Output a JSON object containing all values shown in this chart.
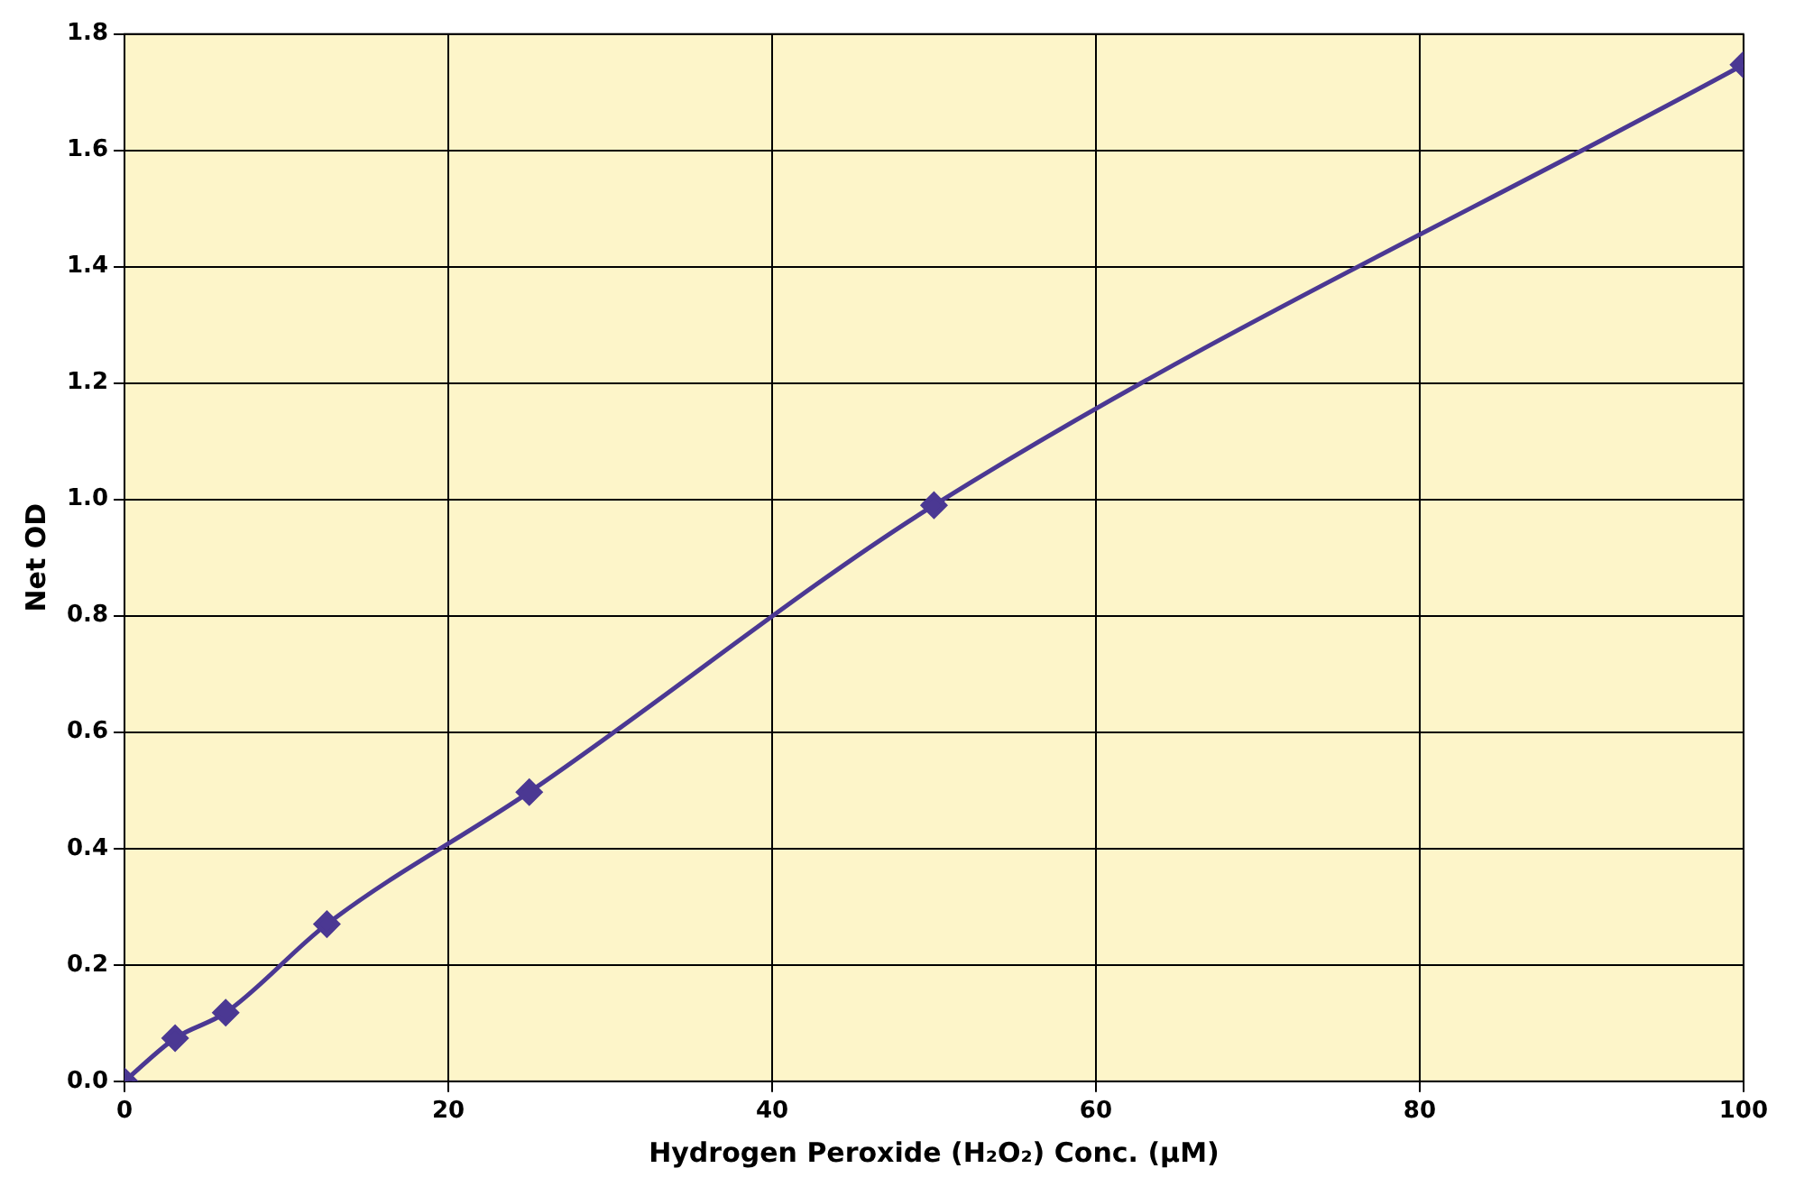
{
  "chart_data": {
    "type": "line",
    "xlabel": "Hydrogen Peroxide (H₂O₂) Conc. (µM)",
    "ylabel": "Net OD",
    "x": [
      0,
      3.125,
      6.25,
      12.5,
      25,
      50,
      100
    ],
    "series": [
      {
        "color": "#4b3893",
        "values": [
          0,
          0.074,
          0.118,
          0.27,
          0.497,
          0.99,
          1.747
        ]
      }
    ],
    "xlim": [
      0,
      100
    ],
    "xticks": [
      0,
      20,
      40,
      60,
      80,
      100
    ],
    "ylim": [
      0,
      1.8
    ],
    "yticks": [
      {
        "value": 0,
        "label": "0.0"
      },
      {
        "value": 0.2,
        "label": "0.2"
      },
      {
        "value": 0.4,
        "label": "0.4"
      },
      {
        "value": 0.6,
        "label": "0.6"
      },
      {
        "value": 0.8,
        "label": "0.8"
      },
      {
        "value": 1,
        "label": "1.0"
      },
      {
        "value": 1.2,
        "label": "1.2"
      },
      {
        "value": 1.4,
        "label": "1.4"
      },
      {
        "value": 1.6,
        "label": "1.6"
      },
      {
        "value": 1.8,
        "label": "1.8"
      }
    ],
    "grid": true,
    "legend": false,
    "marker": "diamond",
    "line_style": "solid"
  }
}
